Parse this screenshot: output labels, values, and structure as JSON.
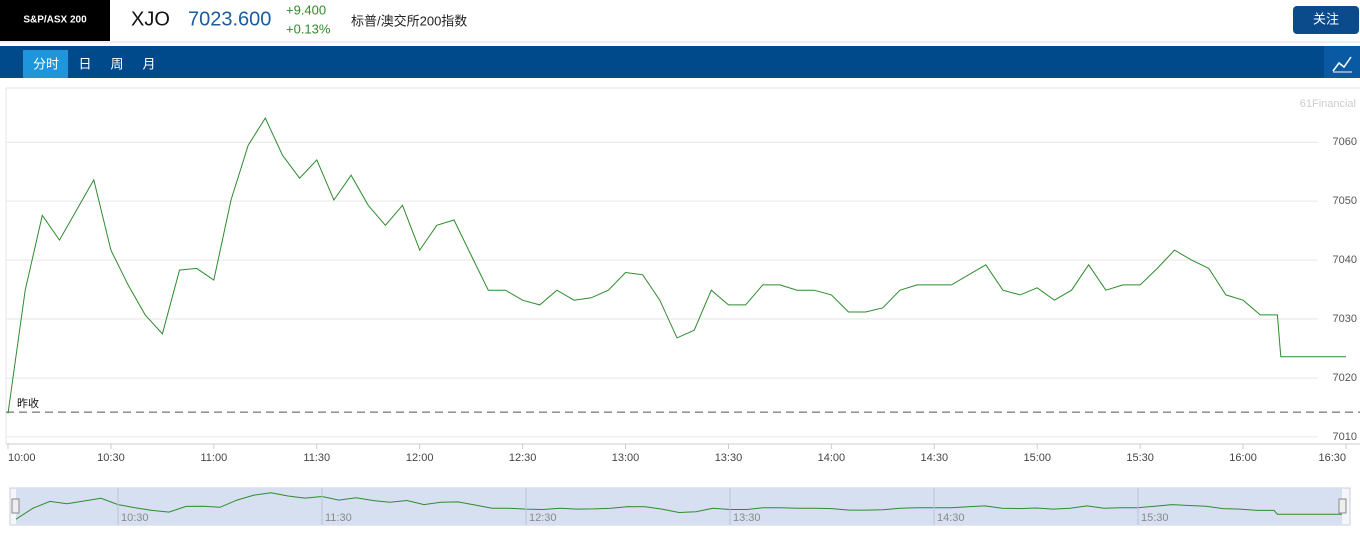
{
  "header": {
    "badge": "S&P/ASX 200",
    "symbol": "XJO",
    "price": "7023.600",
    "change": "+9.400",
    "change_pct": "+0.13%",
    "name": "标普/澳交所200指数",
    "follow_button": "关注"
  },
  "tabs": [
    "分时",
    "日",
    "周",
    "月"
  ],
  "chart_data": {
    "type": "line",
    "watermark": "61Financial",
    "prev_close_label": "昨收",
    "prev_close": 7014.2,
    "x": [
      "10:00",
      "10:05",
      "10:10",
      "10:15",
      "10:20",
      "10:25",
      "10:30",
      "10:35",
      "10:40",
      "10:45",
      "10:50",
      "10:55",
      "11:00",
      "11:05",
      "11:10",
      "11:15",
      "11:20",
      "11:25",
      "11:30",
      "11:35",
      "11:40",
      "11:45",
      "11:50",
      "11:55",
      "12:00",
      "12:05",
      "12:10",
      "12:15",
      "12:20",
      "12:25",
      "12:30",
      "12:35",
      "12:40",
      "12:45",
      "12:50",
      "12:55",
      "13:00",
      "13:05",
      "13:10",
      "13:15",
      "13:20",
      "13:25",
      "13:30",
      "13:35",
      "13:40",
      "13:45",
      "13:50",
      "13:55",
      "14:00",
      "14:05",
      "14:10",
      "14:15",
      "14:20",
      "14:25",
      "14:30",
      "14:35",
      "14:40",
      "14:45",
      "14:50",
      "14:55",
      "15:00",
      "15:05",
      "15:10",
      "15:15",
      "15:20",
      "15:25",
      "15:30",
      "15:35",
      "15:40",
      "15:45",
      "15:50",
      "15:55",
      "16:00",
      "16:05",
      "16:10",
      "16:11",
      "16:15",
      "16:20",
      "16:25",
      "16:30"
    ],
    "series": [
      {
        "name": "XJO",
        "color": "#2e8b2e",
        "values": [
          7014.0,
          7034.9,
          7047.6,
          7043.4,
          7048.5,
          7053.6,
          7041.7,
          7035.8,
          7030.7,
          7027.5,
          7038.3,
          7038.6,
          7036.6,
          7050.2,
          7059.5,
          7064.1,
          7057.8,
          7053.9,
          7057.0,
          7050.2,
          7054.4,
          7049.3,
          7045.9,
          7049.3,
          7041.7,
          7045.9,
          7046.8,
          7040.8,
          7034.9,
          7034.9,
          7033.2,
          7032.4,
          7034.9,
          7033.2,
          7033.6,
          7034.9,
          7037.9,
          7037.5,
          7033.2,
          7026.8,
          7028.1,
          7034.9,
          7032.4,
          7032.4,
          7035.8,
          7035.8,
          7034.9,
          7034.9,
          7034.1,
          7031.2,
          7031.2,
          7031.9,
          7034.9,
          7035.8,
          7035.8,
          7035.8,
          7037.5,
          7039.2,
          7034.9,
          7034.1,
          7035.3,
          7033.2,
          7034.9,
          7039.2,
          7034.9,
          7035.8,
          7035.8,
          7038.6,
          7041.7,
          7040.0,
          7038.6,
          7034.1,
          7033.2,
          7030.7,
          7030.7,
          7023.6,
          7023.6,
          7023.6,
          7023.6,
          7023.6
        ]
      }
    ],
    "ylim": [
      7008.8,
      7069.2
    ],
    "yticks": [
      7010,
      7020,
      7030,
      7040,
      7050,
      7060
    ],
    "xlim": [
      "10:00",
      "16:30"
    ],
    "xticks": [
      "10:00",
      "10:30",
      "11:00",
      "11:30",
      "12:00",
      "12:30",
      "13:00",
      "13:30",
      "14:00",
      "14:30",
      "15:00",
      "15:30",
      "16:00",
      "16:30"
    ],
    "grid": true
  }
}
